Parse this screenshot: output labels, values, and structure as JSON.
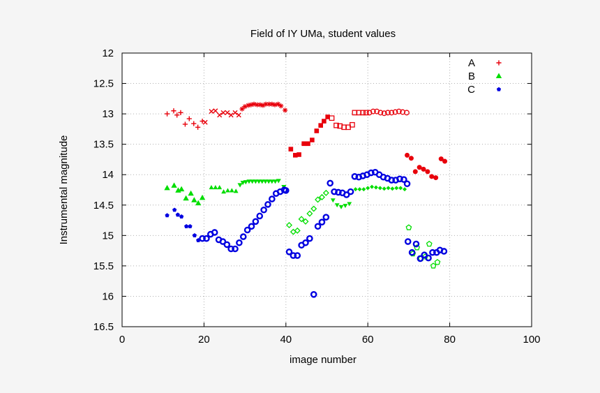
{
  "chart_data": {
    "type": "scatter",
    "title": "Field of IY UMa, student values",
    "xlabel": "image number",
    "ylabel": "Instrumental magnitude",
    "xlim": [
      0,
      100
    ],
    "ylim": [
      12,
      16.5
    ],
    "y_reversed": true,
    "grid": true,
    "legend_position": "top-right",
    "x_ticks": [
      "0",
      "20",
      "40",
      "60",
      "80",
      "100"
    ],
    "x_tick_values": [
      0,
      20,
      40,
      60,
      80,
      100
    ],
    "y_ticks": [
      "12",
      "12.5",
      "13",
      "13.5",
      "14",
      "14.5",
      "15",
      "15.5",
      "16",
      "16.5"
    ],
    "y_tick_values": [
      12,
      12.5,
      13,
      13.5,
      14,
      14.5,
      15,
      15.5,
      16,
      16.5
    ],
    "series": [
      {
        "name": "A",
        "color": "#e8000b",
        "points": [
          [
            11,
            13.0,
            "plus"
          ],
          [
            12.6,
            12.95,
            "plus"
          ],
          [
            13.4,
            13.02,
            "plus"
          ],
          [
            14.3,
            12.98,
            "plus"
          ],
          [
            15.4,
            13.17,
            "plus"
          ],
          [
            16.4,
            13.08,
            "plus"
          ],
          [
            17.5,
            13.16,
            "plus"
          ],
          [
            18.5,
            13.22,
            "plus"
          ],
          [
            19.6,
            13.12,
            "plus"
          ],
          [
            20.3,
            13.14,
            "cross"
          ],
          [
            21.8,
            12.96,
            "cross"
          ],
          [
            22.8,
            12.95,
            "cross"
          ],
          [
            23.8,
            13.02,
            "cross"
          ],
          [
            24.7,
            12.98,
            "cross"
          ],
          [
            25.7,
            12.98,
            "cross"
          ],
          [
            26.6,
            13.02,
            "cross"
          ],
          [
            27.6,
            12.98,
            "cross"
          ],
          [
            28.5,
            13.02,
            "cross"
          ],
          [
            29.3,
            12.92,
            "star"
          ],
          [
            30,
            12.88,
            "star"
          ],
          [
            30.8,
            12.86,
            "star"
          ],
          [
            31.5,
            12.85,
            "star"
          ],
          [
            32.2,
            12.84,
            "star"
          ],
          [
            33,
            12.85,
            "star"
          ],
          [
            33.7,
            12.85,
            "star"
          ],
          [
            34.4,
            12.86,
            "star"
          ],
          [
            35.1,
            12.84,
            "star"
          ],
          [
            35.9,
            12.84,
            "star"
          ],
          [
            36.6,
            12.84,
            "star"
          ],
          [
            37.3,
            12.85,
            "star"
          ],
          [
            38.1,
            12.84,
            "star"
          ],
          [
            38.8,
            12.87,
            "star"
          ],
          [
            39.8,
            12.94,
            "star"
          ],
          [
            41.2,
            13.58,
            "square"
          ],
          [
            42.3,
            13.68,
            "square"
          ],
          [
            43.2,
            13.67,
            "square"
          ],
          [
            44.4,
            13.49,
            "square"
          ],
          [
            45.4,
            13.49,
            "square"
          ],
          [
            46.4,
            13.43,
            "square"
          ],
          [
            47.5,
            13.28,
            "square"
          ],
          [
            48.5,
            13.19,
            "square"
          ],
          [
            49.3,
            13.12,
            "square"
          ],
          [
            50.2,
            13.05,
            "square"
          ],
          [
            51.2,
            13.07,
            "open-square"
          ],
          [
            52.3,
            13.19,
            "open-square"
          ],
          [
            53.2,
            13.2,
            "open-square"
          ],
          [
            54.2,
            13.22,
            "open-square"
          ],
          [
            55.2,
            13.22,
            "open-square"
          ],
          [
            56.2,
            13.18,
            "open-square"
          ],
          [
            56.8,
            12.98,
            "open-square"
          ],
          [
            57.8,
            12.98,
            "open-square"
          ],
          [
            58.8,
            12.98,
            "open-square"
          ],
          [
            59.6,
            12.98,
            "open-square"
          ],
          [
            60.4,
            12.98,
            "open-circle"
          ],
          [
            61.3,
            12.96,
            "open-circle"
          ],
          [
            62.2,
            12.96,
            "open-circle"
          ],
          [
            63.1,
            12.98,
            "open-circle"
          ],
          [
            64,
            12.99,
            "open-circle"
          ],
          [
            64.9,
            12.98,
            "open-circle"
          ],
          [
            65.8,
            12.98,
            "open-circle"
          ],
          [
            66.7,
            12.97,
            "open-circle"
          ],
          [
            67.6,
            12.96,
            "open-circle"
          ],
          [
            68.5,
            12.97,
            "open-circle"
          ],
          [
            69.5,
            12.98,
            "open-circle"
          ],
          [
            69.6,
            13.68,
            "filled-circle"
          ],
          [
            70.6,
            13.73,
            "filled-circle"
          ],
          [
            71.6,
            13.95,
            "filled-circle"
          ],
          [
            72.6,
            13.88,
            "filled-circle"
          ],
          [
            73.6,
            13.91,
            "filled-circle"
          ],
          [
            74.6,
            13.95,
            "filled-circle"
          ],
          [
            75.6,
            14.03,
            "filled-circle"
          ],
          [
            76.6,
            14.05,
            "filled-circle"
          ],
          [
            77.9,
            13.74,
            "filled-circle"
          ],
          [
            78.8,
            13.78,
            "filled-circle"
          ]
        ]
      },
      {
        "name": "B",
        "color": "#00dd00",
        "points": [
          [
            11,
            14.22,
            "triangle"
          ],
          [
            12.7,
            14.18,
            "triangle"
          ],
          [
            13.7,
            14.26,
            "triangle"
          ],
          [
            14.5,
            14.24,
            "triangle"
          ],
          [
            15.6,
            14.39,
            "triangle"
          ],
          [
            16.8,
            14.31,
            "triangle"
          ],
          [
            17.6,
            14.42,
            "triangle"
          ],
          [
            18.6,
            14.47,
            "triangle"
          ],
          [
            19.6,
            14.38,
            "triangle"
          ],
          [
            21.8,
            14.21,
            "filled-triangle"
          ],
          [
            22.8,
            14.21,
            "filled-triangle"
          ],
          [
            23.8,
            14.21,
            "filled-triangle"
          ],
          [
            24.8,
            14.28,
            "filled-triangle"
          ],
          [
            25.8,
            14.26,
            "filled-triangle"
          ],
          [
            26.8,
            14.26,
            "filled-triangle"
          ],
          [
            27.8,
            14.27,
            "filled-triangle"
          ],
          [
            28.8,
            14.17,
            "inverted-triangle"
          ],
          [
            29.5,
            14.13,
            "inverted-triangle"
          ],
          [
            30.2,
            14.12,
            "inverted-triangle"
          ],
          [
            31,
            14.11,
            "inverted-triangle"
          ],
          [
            31.8,
            14.11,
            "inverted-triangle"
          ],
          [
            32.6,
            14.11,
            "inverted-triangle"
          ],
          [
            33.4,
            14.11,
            "inverted-triangle"
          ],
          [
            34.2,
            14.11,
            "inverted-triangle"
          ],
          [
            35,
            14.11,
            "inverted-triangle"
          ],
          [
            35.8,
            14.11,
            "inverted-triangle"
          ],
          [
            36.6,
            14.11,
            "inverted-triangle"
          ],
          [
            37.4,
            14.11,
            "inverted-triangle"
          ],
          [
            38.2,
            14.1,
            "inverted-triangle"
          ],
          [
            39.5,
            14.2,
            "inverted-triangle"
          ],
          [
            40.8,
            14.83,
            "diamond"
          ],
          [
            41.8,
            14.94,
            "diamond"
          ],
          [
            42.8,
            14.92,
            "diamond"
          ],
          [
            43.8,
            14.73,
            "diamond"
          ],
          [
            44.8,
            14.77,
            "diamond"
          ],
          [
            45.8,
            14.64,
            "diamond"
          ],
          [
            46.8,
            14.56,
            "diamond"
          ],
          [
            47.8,
            14.41,
            "diamond"
          ],
          [
            48.8,
            14.37,
            "diamond"
          ],
          [
            49.8,
            14.3,
            "diamond"
          ],
          [
            51.5,
            14.42,
            "filled-inverted-triangle"
          ],
          [
            52.5,
            14.5,
            "filled-inverted-triangle"
          ],
          [
            53.5,
            14.53,
            "filled-inverted-triangle"
          ],
          [
            54.5,
            14.51,
            "filled-inverted-triangle"
          ],
          [
            55.5,
            14.48,
            "filled-inverted-triangle"
          ],
          [
            57,
            14.24,
            "filled-diamond"
          ],
          [
            58,
            14.24,
            "filled-diamond"
          ],
          [
            59,
            14.24,
            "filled-diamond"
          ],
          [
            60,
            14.22,
            "filled-diamond"
          ],
          [
            61,
            14.2,
            "filled-diamond"
          ],
          [
            62,
            14.21,
            "filled-diamond"
          ],
          [
            63,
            14.22,
            "filled-diamond"
          ],
          [
            64,
            14.23,
            "filled-diamond"
          ],
          [
            65,
            14.22,
            "filled-diamond"
          ],
          [
            66,
            14.23,
            "filled-diamond"
          ],
          [
            67,
            14.22,
            "filled-diamond"
          ],
          [
            68,
            14.22,
            "filled-diamond"
          ],
          [
            69,
            14.24,
            "filled-diamond"
          ],
          [
            70,
            14.87,
            "pentagon"
          ],
          [
            71,
            15.3,
            "pentagon"
          ],
          [
            72,
            15.2,
            "pentagon"
          ],
          [
            73,
            15.38,
            "pentagon"
          ],
          [
            74,
            15.35,
            "pentagon"
          ],
          [
            75,
            15.14,
            "pentagon"
          ],
          [
            76,
            15.5,
            "pentagon"
          ],
          [
            77,
            15.44,
            "pentagon"
          ]
        ]
      },
      {
        "name": "C",
        "color": "#0000e0",
        "points": [
          [
            11,
            14.67,
            "filled-pentagon"
          ],
          [
            12.8,
            14.58,
            "filled-pentagon"
          ],
          [
            13.6,
            14.66,
            "filled-pentagon"
          ],
          [
            14.5,
            14.69,
            "filled-pentagon"
          ],
          [
            15.7,
            14.85,
            "filled-pentagon"
          ],
          [
            16.6,
            14.85,
            "filled-pentagon"
          ],
          [
            17.7,
            15.0,
            "filled-pentagon"
          ],
          [
            18.6,
            15.08,
            "filled-pentagon"
          ],
          [
            19.6,
            15.05,
            "ring"
          ],
          [
            20.6,
            15.05,
            "ring"
          ],
          [
            21.6,
            14.98,
            "ring"
          ],
          [
            22.6,
            14.95,
            "ring"
          ],
          [
            23.6,
            15.07,
            "ring"
          ],
          [
            24.6,
            15.1,
            "ring"
          ],
          [
            25.6,
            15.15,
            "ring"
          ],
          [
            26.6,
            15.22,
            "ring"
          ],
          [
            27.6,
            15.22,
            "ring"
          ],
          [
            28.6,
            15.12,
            "ring"
          ],
          [
            29.6,
            15.02,
            "ring"
          ],
          [
            30.6,
            14.91,
            "ring"
          ],
          [
            31.6,
            14.85,
            "ring"
          ],
          [
            32.6,
            14.77,
            "ring"
          ],
          [
            33.6,
            14.68,
            "ring"
          ],
          [
            34.6,
            14.58,
            "ring"
          ],
          [
            35.6,
            14.49,
            "ring"
          ],
          [
            36.6,
            14.4,
            "ring"
          ],
          [
            37.6,
            14.31,
            "ring"
          ],
          [
            38.6,
            14.28,
            "ring"
          ],
          [
            39.6,
            14.25,
            "ring"
          ],
          [
            40,
            14.26,
            "ring"
          ],
          [
            40.8,
            15.27,
            "ring"
          ],
          [
            41.8,
            15.33,
            "ring"
          ],
          [
            42.8,
            15.33,
            "ring"
          ],
          [
            43.8,
            15.16,
            "ring"
          ],
          [
            44.8,
            15.12,
            "ring"
          ],
          [
            45.8,
            15.05,
            "ring"
          ],
          [
            46.8,
            15.97,
            "ring"
          ],
          [
            47.8,
            14.85,
            "ring"
          ],
          [
            48.8,
            14.78,
            "ring"
          ],
          [
            49.8,
            14.7,
            "ring"
          ],
          [
            50.8,
            14.14,
            "ring"
          ],
          [
            51.8,
            14.28,
            "ring"
          ],
          [
            52.8,
            14.29,
            "ring"
          ],
          [
            53.8,
            14.3,
            "ring"
          ],
          [
            54.8,
            14.33,
            "ring"
          ],
          [
            55.8,
            14.28,
            "ring"
          ],
          [
            56.8,
            14.03,
            "ring"
          ],
          [
            57.8,
            14.04,
            "ring"
          ],
          [
            58.8,
            14.02,
            "ring"
          ],
          [
            59.8,
            14.0,
            "ring"
          ],
          [
            60.8,
            13.97,
            "ring"
          ],
          [
            61.8,
            13.96,
            "ring"
          ],
          [
            62.8,
            14.0,
            "ring"
          ],
          [
            63.8,
            14.04,
            "ring"
          ],
          [
            64.8,
            14.06,
            "ring"
          ],
          [
            65.8,
            14.09,
            "ring"
          ],
          [
            66.8,
            14.09,
            "ring"
          ],
          [
            67.8,
            14.07,
            "ring"
          ],
          [
            68.8,
            14.08,
            "ring"
          ],
          [
            69.6,
            14.15,
            "ring"
          ],
          [
            69.8,
            15.1,
            "ring"
          ],
          [
            70.8,
            15.28,
            "ring"
          ],
          [
            71.8,
            15.14,
            "ring"
          ],
          [
            72.8,
            15.38,
            "ring"
          ],
          [
            73.8,
            15.32,
            "ring"
          ],
          [
            74.8,
            15.37,
            "ring"
          ],
          [
            75.8,
            15.28,
            "ring"
          ],
          [
            76.8,
            15.28,
            "ring"
          ],
          [
            77.6,
            15.24,
            "ring"
          ],
          [
            78.6,
            15.26,
            "ring"
          ]
        ]
      }
    ]
  }
}
